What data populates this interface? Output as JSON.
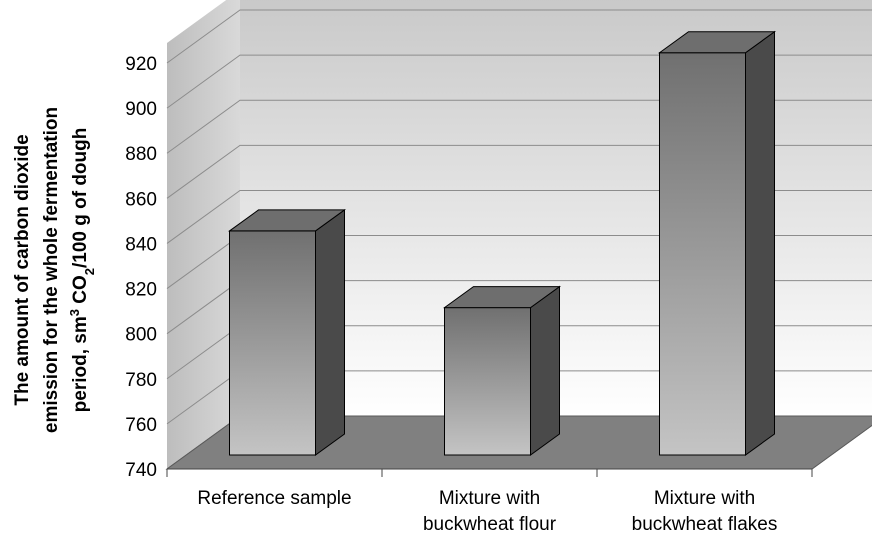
{
  "chart_data": {
    "type": "bar",
    "categories": [
      "Reference sample",
      "Mixture with buckwheat flour",
      "Mixture with buckwheat flakes"
    ],
    "category_lines": [
      [
        "Reference sample"
      ],
      [
        "Mixture with",
        "buckwheat flour"
      ],
      [
        "Mixture with",
        "buckwheat flakes"
      ]
    ],
    "values": [
      842,
      808,
      921
    ],
    "ylim": [
      740,
      920
    ],
    "yticks": [
      740,
      760,
      780,
      800,
      820,
      840,
      860,
      880,
      900,
      920
    ],
    "ylabel_lines": [
      "The amount of carbon dioxide",
      "emission for the whole fermentation",
      "period, sm",
      "3",
      " CO",
      "2",
      "/100 g of dough"
    ],
    "grid": true,
    "style": "3d",
    "colors": {
      "floor": "#808080",
      "wall_top": "#c8c8c8",
      "wall_bottom": "#ffffff",
      "bar_front_light": "#c4c4c4",
      "bar_front_dark": "#707070",
      "bar_side": "#4a4a4a",
      "bar_top": "#6e6e6e"
    }
  }
}
